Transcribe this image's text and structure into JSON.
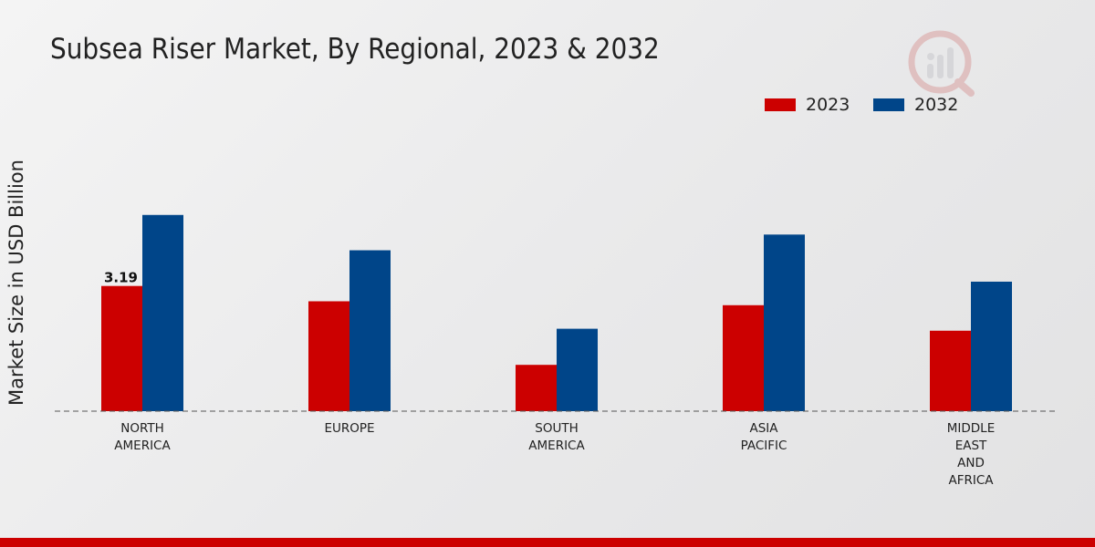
{
  "title": "Subsea Riser Market, By Regional, 2023 & 2032",
  "colors": {
    "series_2023": "#cc0000",
    "series_2032": "#004589",
    "footer_bar": "#cc0000"
  },
  "logo": {
    "icon": "market-research-logo-icon"
  },
  "chart_data": {
    "type": "bar",
    "title": "Subsea Riser Market, By Regional, 2023 & 2032",
    "xlabel": "",
    "ylabel": "Market Size in USD Billion",
    "categories": [
      [
        "NORTH",
        "AMERICA"
      ],
      [
        "EUROPE"
      ],
      [
        "SOUTH",
        "AMERICA"
      ],
      [
        "ASIA",
        "PACIFIC"
      ],
      [
        "MIDDLE",
        "EAST",
        "AND",
        "AFRICA"
      ]
    ],
    "series": [
      {
        "name": "2023",
        "color": "#cc0000",
        "values": [
          3.19,
          2.8,
          1.18,
          2.7,
          2.05
        ]
      },
      {
        "name": "2032",
        "color": "#004589",
        "values": [
          5.0,
          4.1,
          2.1,
          4.5,
          3.3
        ]
      }
    ],
    "data_labels": [
      {
        "series": 0,
        "index": 0,
        "text": "3.19"
      }
    ],
    "ylim": [
      0,
      9.2
    ],
    "grid": false,
    "legend_position": "top-right"
  }
}
